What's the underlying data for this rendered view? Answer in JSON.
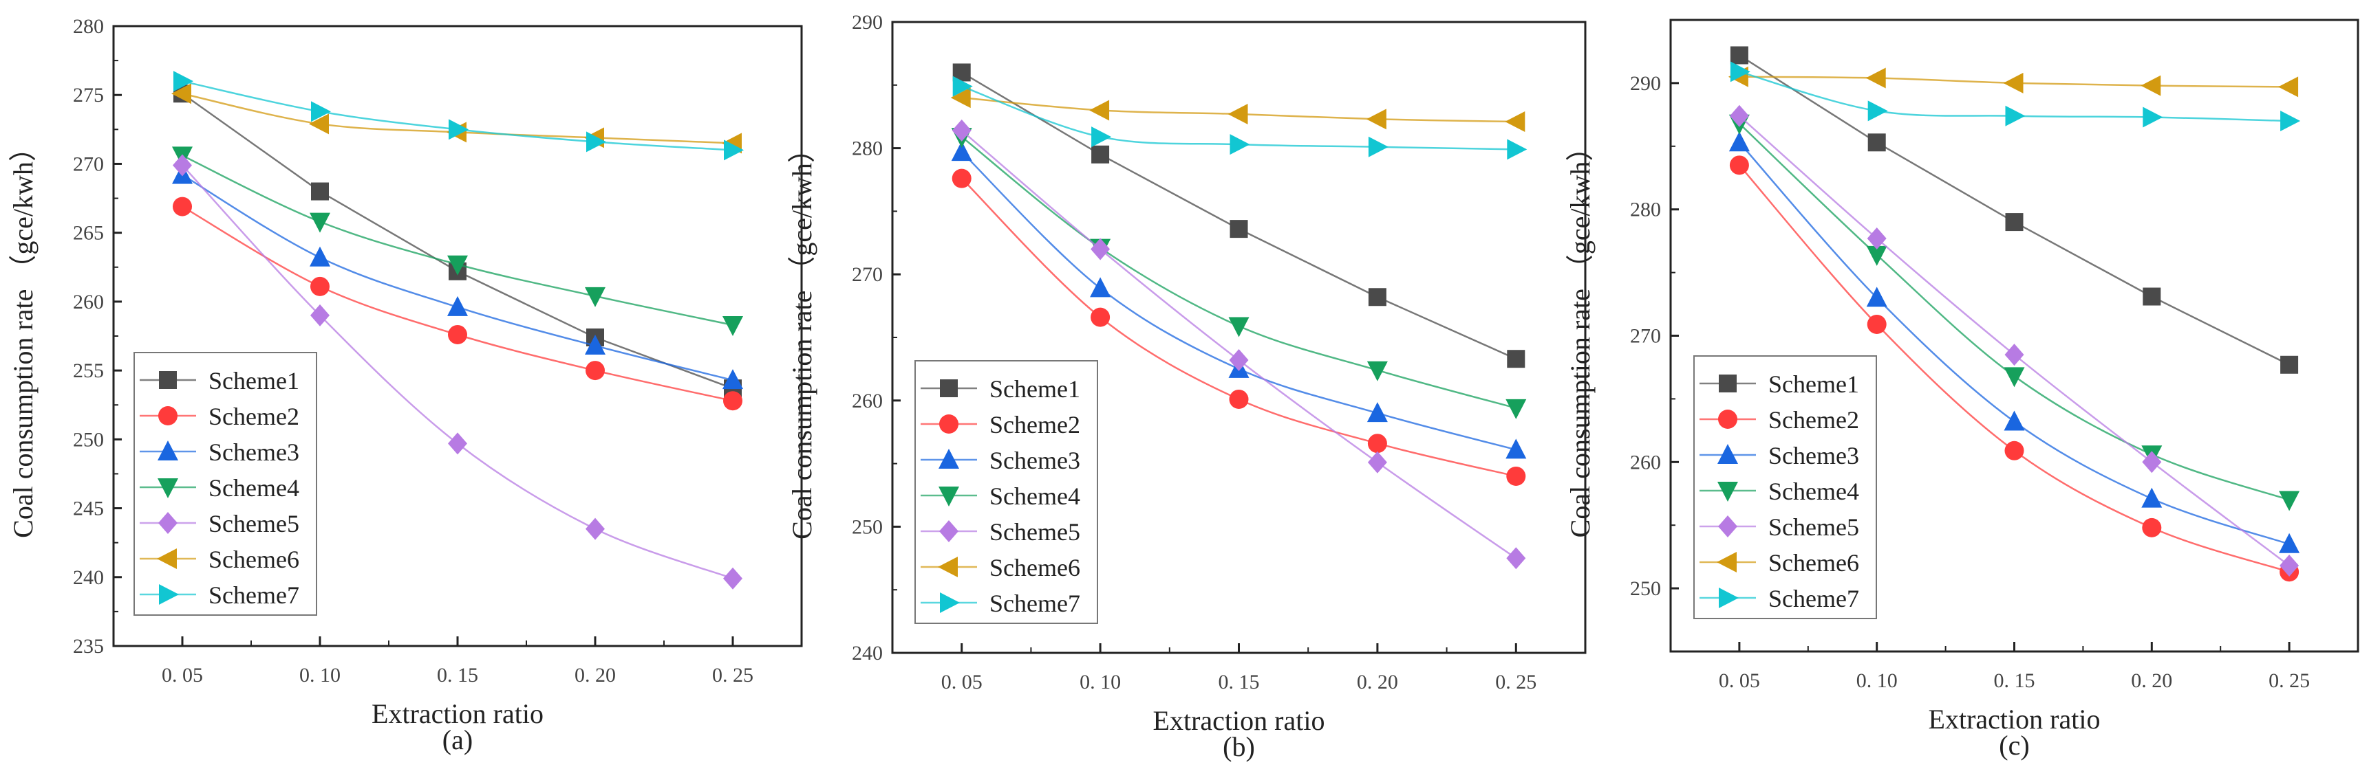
{
  "chart_data": [
    {
      "type": "line",
      "panel_label": "(a)",
      "xlabel": "Extraction ratio",
      "ylabel": "Coal consumption rate （gce/kwh）",
      "x": [
        0.05,
        0.1,
        0.15,
        0.2,
        0.25
      ],
      "x_tick_labels": [
        "0. 05",
        "0. 10",
        "0. 15",
        "0. 20",
        "0. 25"
      ],
      "xlim": [
        0.025,
        0.275
      ],
      "ylim": [
        235,
        280
      ],
      "y_ticks": [
        235,
        240,
        245,
        250,
        255,
        260,
        265,
        270,
        275,
        280
      ],
      "legend_position": "bottom-left",
      "series": [
        {
          "name": "Scheme1",
          "values": [
            275.1,
            268.0,
            262.2,
            257.4,
            253.7
          ]
        },
        {
          "name": "Scheme2",
          "values": [
            266.9,
            261.1,
            257.6,
            255.0,
            252.8
          ]
        },
        {
          "name": "Scheme3",
          "values": [
            269.2,
            263.2,
            259.6,
            256.8,
            254.3
          ]
        },
        {
          "name": "Scheme4",
          "values": [
            270.6,
            265.8,
            262.7,
            260.4,
            258.3
          ]
        },
        {
          "name": "Scheme5",
          "values": [
            269.9,
            259.0,
            249.7,
            243.5,
            239.9
          ]
        },
        {
          "name": "Scheme6",
          "values": [
            275.1,
            272.9,
            272.3,
            271.9,
            271.5
          ]
        },
        {
          "name": "Scheme7",
          "values": [
            276.0,
            273.8,
            272.5,
            271.6,
            271.0
          ]
        }
      ]
    },
    {
      "type": "line",
      "panel_label": "(b)",
      "xlabel": "Extraction ratio",
      "ylabel": "Coal consumption rate （gce/kwh）",
      "x": [
        0.05,
        0.1,
        0.15,
        0.2,
        0.25
      ],
      "x_tick_labels": [
        "0. 05",
        "0. 10",
        "0. 15",
        "0. 20",
        "0. 25"
      ],
      "xlim": [
        0.025,
        0.275
      ],
      "ylim": [
        240,
        290
      ],
      "y_ticks": [
        240,
        250,
        260,
        270,
        280,
        290
      ],
      "legend_position": "bottom-left",
      "series": [
        {
          "name": "Scheme1",
          "values": [
            286.0,
            279.5,
            273.6,
            268.2,
            263.3
          ]
        },
        {
          "name": "Scheme2",
          "values": [
            277.6,
            266.6,
            260.1,
            256.6,
            254.0
          ]
        },
        {
          "name": "Scheme3",
          "values": [
            279.7,
            268.9,
            262.5,
            259.0,
            256.1
          ]
        },
        {
          "name": "Scheme4",
          "values": [
            280.9,
            272.1,
            265.9,
            262.4,
            259.4
          ]
        },
        {
          "name": "Scheme5",
          "values": [
            281.4,
            272.0,
            263.2,
            255.1,
            247.5
          ]
        },
        {
          "name": "Scheme6",
          "values": [
            284.0,
            283.0,
            282.7,
            282.3,
            282.1
          ]
        },
        {
          "name": "Scheme7",
          "values": [
            284.9,
            280.9,
            280.3,
            280.1,
            279.9
          ]
        }
      ]
    },
    {
      "type": "line",
      "panel_label": "(c)",
      "xlabel": "Extraction ratio",
      "ylabel": "Coal consumption rate （gce/kwh）",
      "x": [
        0.05,
        0.1,
        0.15,
        0.2,
        0.25
      ],
      "x_tick_labels": [
        "0. 05",
        "0. 10",
        "0. 15",
        "0. 20",
        "0. 25"
      ],
      "xlim": [
        0.025,
        0.275
      ],
      "ylim": [
        245,
        295
      ],
      "y_ticks": [
        250,
        260,
        270,
        280,
        290
      ],
      "legend_position": "bottom-left",
      "series": [
        {
          "name": "Scheme1",
          "values": [
            292.2,
            285.3,
            279.0,
            273.1,
            267.7
          ]
        },
        {
          "name": "Scheme2",
          "values": [
            283.5,
            270.9,
            260.9,
            254.8,
            251.3
          ]
        },
        {
          "name": "Scheme3",
          "values": [
            285.3,
            273.0,
            263.2,
            257.1,
            253.5
          ]
        },
        {
          "name": "Scheme4",
          "values": [
            286.8,
            276.4,
            266.8,
            260.6,
            257.0
          ]
        },
        {
          "name": "Scheme5",
          "values": [
            287.4,
            277.7,
            268.5,
            260.0,
            251.8
          ]
        },
        {
          "name": "Scheme6",
          "values": [
            290.5,
            290.4,
            290.0,
            289.8,
            289.7
          ]
        },
        {
          "name": "Scheme7",
          "values": [
            290.9,
            287.8,
            287.4,
            287.3,
            287.0
          ]
        }
      ]
    }
  ],
  "series_style": [
    {
      "color": "#4a4a4a",
      "marker": "square"
    },
    {
      "color": "#ff3b3b",
      "marker": "circle"
    },
    {
      "color": "#1a66e0",
      "marker": "triangle-up"
    },
    {
      "color": "#16a05c",
      "marker": "triangle-down"
    },
    {
      "color": "#b77be3",
      "marker": "diamond"
    },
    {
      "color": "#d39a10",
      "marker": "triangle-left"
    },
    {
      "color": "#12c6d2",
      "marker": "triangle-right"
    }
  ]
}
